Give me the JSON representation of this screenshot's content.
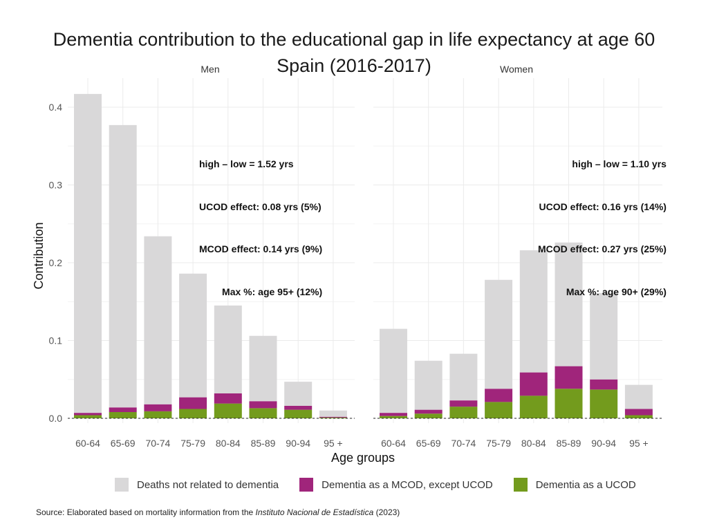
{
  "title_line1": "Dementia contribution to the educational gap in life expectancy at age 60",
  "title_line2": "Spain (2016-2017)",
  "chart_data": {
    "type": "bar",
    "stacked": true,
    "ylabel": "Contribution",
    "xlabel": "Age groups",
    "ylim": [
      0,
      0.42
    ],
    "yticks": [
      0.0,
      0.1,
      0.2,
      0.3,
      0.4
    ],
    "ytick_labels": [
      "0.0",
      "0.1",
      "0.2",
      "0.3",
      "0.4"
    ],
    "categories": [
      "60-64",
      "65-69",
      "70-74",
      "75-79",
      "80-84",
      "85-89",
      "90-94",
      "95 +"
    ],
    "legend_position": "bottom",
    "series_colors": {
      "Deaths not related to dementia": "#d9d8d9",
      "Dementia as a MCOD, except UCOD": "#a0257b",
      "Dementia as a UCOD": "#739b1d"
    },
    "panels": [
      {
        "name": "Men",
        "series": [
          {
            "name": "Dementia as a UCOD",
            "values": [
              0.004,
              0.008,
              0.009,
              0.012,
              0.019,
              0.013,
              0.011,
              0.001
            ]
          },
          {
            "name": "Dementia as a MCOD, except UCOD",
            "values": [
              0.003,
              0.006,
              0.009,
              0.015,
              0.013,
              0.009,
              0.005,
              0.001
            ]
          },
          {
            "name": "Deaths not related to dementia",
            "values": [
              0.41,
              0.363,
              0.216,
              0.159,
              0.113,
              0.084,
              0.031,
              0.008
            ]
          }
        ]
      },
      {
        "name": "Women",
        "series": [
          {
            "name": "Dementia as a UCOD",
            "values": [
              0.003,
              0.006,
              0.015,
              0.021,
              0.029,
              0.038,
              0.037,
              0.004
            ]
          },
          {
            "name": "Dementia as a MCOD, except UCOD",
            "values": [
              0.004,
              0.005,
              0.008,
              0.017,
              0.03,
              0.029,
              0.013,
              0.008
            ]
          },
          {
            "name": "Deaths not related to dementia",
            "values": [
              0.108,
              0.063,
              0.06,
              0.14,
              0.157,
              0.159,
              0.111,
              0.031
            ]
          }
        ]
      }
    ]
  },
  "annotations": {
    "men": {
      "line1": "high – low = 1.52 yrs",
      "line2": "UCOD effect: 0.08 yrs (5%)",
      "line3": "MCOD effect: 0.14 yrs (9%)",
      "line4": "Max %: age 95+ (12%)"
    },
    "women": {
      "line1": "high – low = 1.10 yrs",
      "line2": "UCOD effect: 0.16 yrs (14%)",
      "line3": "MCOD effect: 0.27 yrs (25%)",
      "line4": "Max %: age 90+ (29%)"
    }
  },
  "legend": {
    "items": [
      {
        "label": "Deaths not related to dementia",
        "color": "#d9d8d9"
      },
      {
        "label": "Dementia as a MCOD, except UCOD",
        "color": "#a0257b"
      },
      {
        "label": "Dementia as a UCOD",
        "color": "#739b1d"
      }
    ]
  },
  "source": {
    "prefix": "Source: Elaborated based on mortality information from the ",
    "institution": "Instituto Nacional de Estadística",
    "suffix": " (2023)"
  }
}
